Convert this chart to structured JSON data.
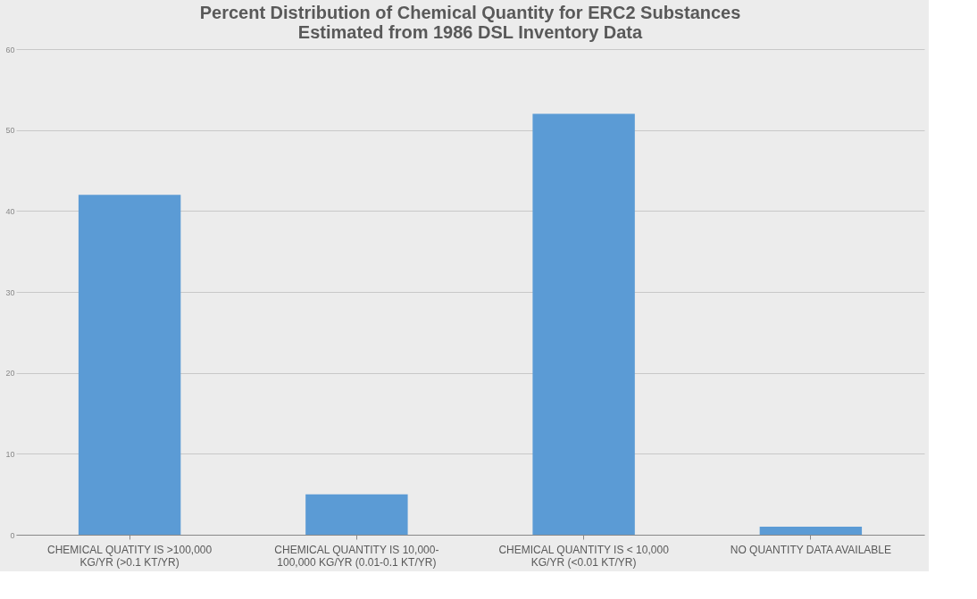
{
  "chart_data": {
    "type": "bar",
    "title": [
      "Percent Distribution of Chemical Quantity for ERC2 Substances",
      "Estimated from 1986 DSL Inventory Data"
    ],
    "categories": [
      "CHEMICAL QUATITY IS >100,000\nKG/YR (>0.1 KT/YR)",
      "CHEMICAL QUANTITY IS 10,000-\n100,000 KG/YR (0.01-0.1 KT/YR)",
      "CHEMICAL QUANTITY IS < 10,000\nKG/YR (<0.01 KT/YR)",
      "NO QUANTITY DATA AVAILABLE"
    ],
    "values": [
      42,
      5,
      52,
      1
    ],
    "color": "#5b9bd5",
    "ylim": [
      0,
      60
    ],
    "yticks": [
      0,
      10,
      20,
      30,
      40,
      50,
      60
    ],
    "grid": "y"
  }
}
